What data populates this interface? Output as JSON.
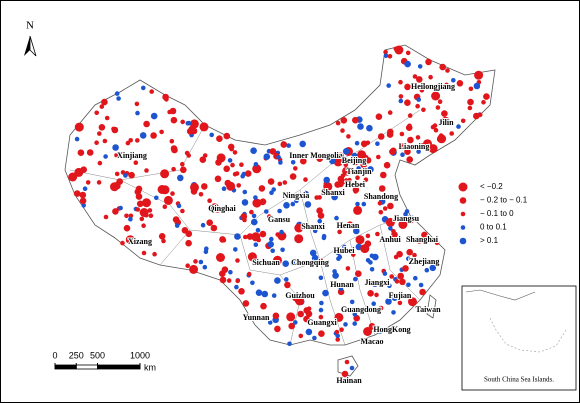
{
  "north_label": "N",
  "provinces": [
    "Heilongjiang",
    "Jilin",
    "Liaoning",
    "Xinjiang",
    "Inner Mongolia",
    "Beijing",
    "Tianjin",
    "Hebei",
    "Shanxi",
    "Shandong",
    "Ningxia",
    "Qinghai",
    "Gansu",
    "Shanxi",
    "Henan",
    "Jiangsu",
    "Xizang",
    "Anhui",
    "Shanghai",
    "Sichuan",
    "Chongqing",
    "Hubei",
    "Zhejiang",
    "Hunan",
    "Jiangxi",
    "Fujian",
    "Guizhou",
    "Taiwan",
    "Guangdong",
    "Yunnan",
    "Guangxi",
    "HongKong",
    "Macao",
    "Hainan"
  ],
  "legend": [
    {
      "label": "< −0.2",
      "color": "#e0161c"
    },
    {
      "label": "− 0.2 to − 0.1",
      "color": "#e0161c"
    },
    {
      "label": "− 0.1 to 0",
      "color": "#e0161c"
    },
    {
      "label": "0 to 0.1",
      "color": "#1d55d0"
    },
    {
      "label": "> 0.1",
      "color": "#1d55d0"
    }
  ],
  "scale_bar": {
    "ticks": [
      0,
      250,
      500,
      1000
    ],
    "unit": "km"
  },
  "inset_label": "South China Sea Islands."
}
